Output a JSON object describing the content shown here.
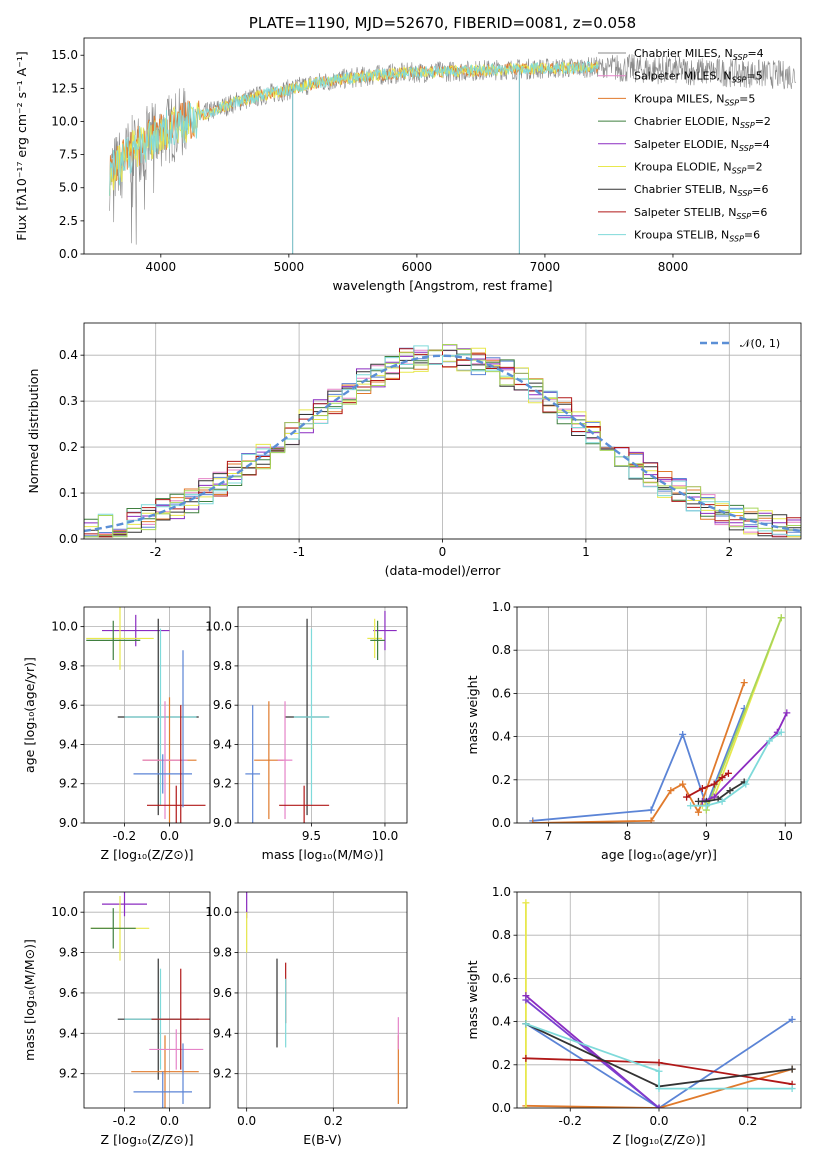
{
  "colors": {
    "Chabrier MILES": "#8a8a8a",
    "Salpeter MILES": "#e584c8",
    "Kroupa MILES": "#e07a2c",
    "Chabrier ELODIE": "#3f7f3f",
    "Salpeter ELODIE": "#8b2cc1",
    "Kroupa ELODIE": "#e8e84d",
    "Chabrier STELIB": "#333333",
    "Salpeter STELIB": "#b01818",
    "Kroupa STELIB": "#7fdada",
    "extra_blue": "#5b84d6",
    "extra_green": "#a8d65b"
  },
  "chart_data": [
    {
      "id": "spectrum",
      "type": "line",
      "title": "PLATE=1190, MJD=52670, FIBERID=0081, z=0.058",
      "xlabel": "wavelength [Angstrom, rest frame]",
      "ylabel": "Flux [fλ10⁻¹⁷ erg cm⁻² s⁻¹ A⁻¹]",
      "xlim": [
        3400,
        9000
      ],
      "ylim": [
        0,
        16.3
      ],
      "xticks": [
        4000,
        5000,
        6000,
        7000,
        8000
      ],
      "yticks": [
        0.0,
        2.5,
        5.0,
        7.5,
        10.0,
        12.5,
        15.0
      ],
      "legend": [
        {
          "name": "Chabrier MILES, N",
          "sub": "SSP",
          "val": "=4"
        },
        {
          "name": "Salpeter MILES, N",
          "sub": "SSP",
          "val": "=5"
        },
        {
          "name": "Kroupa MILES, N",
          "sub": "SSP",
          "val": "=5"
        },
        {
          "name": "Chabrier ELODIE, N",
          "sub": "SSP",
          "val": "=2"
        },
        {
          "name": "Salpeter ELODIE, N",
          "sub": "SSP",
          "val": "=4"
        },
        {
          "name": "Kroupa ELODIE, N",
          "sub": "SSP",
          "val": "=2"
        },
        {
          "name": "Chabrier STELIB, N",
          "sub": "SSP",
          "val": "=6"
        },
        {
          "name": "Salpeter STELIB, N",
          "sub": "SSP",
          "val": "=6"
        },
        {
          "name": "Kroupa STELIB, N",
          "sub": "SSP",
          "val": "=6"
        }
      ],
      "continuum": [
        [
          3600,
          6.0
        ],
        [
          3700,
          7.0
        ],
        [
          3800,
          8.0
        ],
        [
          3900,
          8.5
        ],
        [
          4000,
          9.2
        ],
        [
          4200,
          10.0
        ],
        [
          4400,
          10.8
        ],
        [
          4600,
          11.5
        ],
        [
          4800,
          12.0
        ],
        [
          5000,
          12.4
        ],
        [
          5200,
          12.9
        ],
        [
          5500,
          13.3
        ],
        [
          5800,
          13.6
        ],
        [
          6000,
          13.7
        ],
        [
          6300,
          13.8
        ],
        [
          6600,
          13.9
        ],
        [
          7000,
          14.0
        ],
        [
          7400,
          14.1
        ]
      ],
      "observed_range": [
        3600,
        8960
      ],
      "absorption_spikes": [
        5030,
        6800
      ]
    },
    {
      "id": "residuals",
      "type": "histogram",
      "xlabel": "(data-model)/error",
      "ylabel": "Normed distribution",
      "xlim": [
        -2.5,
        2.5
      ],
      "ylim": [
        0,
        0.47
      ],
      "xticks": [
        -2,
        -1,
        0,
        1,
        2
      ],
      "yticks": [
        0.0,
        0.1,
        0.2,
        0.3,
        0.4
      ],
      "legend": "𝒩(0, 1)",
      "reference": "N(0,1)"
    },
    {
      "id": "age_vs_Z",
      "type": "errorbar",
      "xlabel": "Z [log₁₀(Z/Z⊙)]",
      "ylabel": "age  [log₁₀(age/yr)]",
      "xlim": [
        -0.38,
        0.18
      ],
      "ylim": [
        9.0,
        10.1
      ],
      "xticks": [
        -0.2,
        0.0
      ],
      "yticks": [
        9.0,
        9.2,
        9.4,
        9.6,
        9.8,
        10.0
      ],
      "points": [
        {
          "x": -0.15,
          "y": 9.98,
          "xe": 0.15,
          "ye": 0.08,
          "c": "#8b2cc1"
        },
        {
          "x": -0.22,
          "y": 9.94,
          "xe": 0.15,
          "ye": 0.16,
          "c": "#e8e84d"
        },
        {
          "x": -0.25,
          "y": 9.93,
          "xe": 0.12,
          "ye": 0.1,
          "c": "#3f7f3f"
        },
        {
          "x": -0.05,
          "y": 9.54,
          "xe": 0.18,
          "ye": 0.5,
          "c": "#333333"
        },
        {
          "x": -0.04,
          "y": 9.54,
          "xe": 0.16,
          "ye": 0.45,
          "c": "#7fdada"
        },
        {
          "x": 0.0,
          "y": 9.32,
          "xe": 0.12,
          "ye": 0.32,
          "c": "#e07a2c"
        },
        {
          "x": -0.02,
          "y": 9.32,
          "xe": 0.1,
          "ye": 0.3,
          "c": "#e584c8"
        },
        {
          "x": 0.03,
          "y": 9.09,
          "xe": 0.13,
          "ye": 0.1,
          "c": "#b01818"
        },
        {
          "x": -0.03,
          "y": 9.25,
          "xe": 0.13,
          "ye": 0.1,
          "c": "#5b84d6"
        },
        {
          "x": 0.06,
          "y": 9.48,
          "xe": 0.0,
          "ye": 0.4,
          "c": "#5b84d6"
        },
        {
          "x": 0.05,
          "y": 9.1,
          "xe": 0.0,
          "ye": 0.5,
          "c": "#b01818"
        }
      ]
    },
    {
      "id": "age_vs_mass",
      "type": "errorbar",
      "xlabel": "mass [log₁₀(M/M⊙)]",
      "ylabel": "",
      "xlim": [
        9.0,
        10.15
      ],
      "ylim": [
        9.0,
        10.1
      ],
      "xticks": [
        9.5,
        10.0
      ],
      "yticks": [
        9.0,
        9.2,
        9.4,
        9.6,
        9.8,
        10.0
      ],
      "points": [
        {
          "x": 10.0,
          "y": 9.98,
          "xe": 0.08,
          "ye": 0.1,
          "c": "#8b2cc1"
        },
        {
          "x": 9.93,
          "y": 9.94,
          "xe": 0.05,
          "ye": 0.1,
          "c": "#e8e84d"
        },
        {
          "x": 9.95,
          "y": 9.93,
          "xe": 0.05,
          "ye": 0.1,
          "c": "#3f7f3f"
        },
        {
          "x": 9.47,
          "y": 9.54,
          "xe": 0.15,
          "ye": 0.5,
          "c": "#333333"
        },
        {
          "x": 9.5,
          "y": 9.54,
          "xe": 0.12,
          "ye": 0.45,
          "c": "#7fdada"
        },
        {
          "x": 9.21,
          "y": 9.32,
          "xe": 0.1,
          "ye": 0.3,
          "c": "#e07a2c"
        },
        {
          "x": 9.32,
          "y": 9.32,
          "xe": 0.05,
          "ye": 0.3,
          "c": "#e584c8"
        },
        {
          "x": 9.45,
          "y": 9.09,
          "xe": 0.17,
          "ye": 0.1,
          "c": "#b01818"
        },
        {
          "x": 9.1,
          "y": 9.25,
          "xe": 0.05,
          "ye": 0.35,
          "c": "#5b84d6"
        }
      ]
    },
    {
      "id": "massweight_vs_age",
      "type": "line",
      "xlabel": "age  [log₁₀(age/yr)]",
      "ylabel": "mass weight",
      "xlim": [
        6.6,
        10.2
      ],
      "ylim": [
        0,
        1.0
      ],
      "xticks": [
        7,
        8,
        9,
        10
      ],
      "yticks": [
        0.0,
        0.2,
        0.4,
        0.6,
        0.8,
        1.0
      ],
      "series": [
        {
          "c": "#5b84d6",
          "x": [
            6.8,
            8.3,
            8.7,
            9.0,
            9.48
          ],
          "y": [
            0.01,
            0.06,
            0.41,
            0.08,
            0.53
          ]
        },
        {
          "c": "#e07a2c",
          "x": [
            6.8,
            8.3,
            8.55,
            8.7,
            8.9,
            9.48
          ],
          "y": [
            0.0,
            0.01,
            0.15,
            0.18,
            0.05,
            0.65
          ]
        },
        {
          "c": "#e8e84d",
          "x": [
            8.95,
            9.1,
            9.95
          ],
          "y": [
            0.08,
            0.12,
            0.95
          ]
        },
        {
          "c": "#a8d65b",
          "x": [
            9.0,
            9.95
          ],
          "y": [
            0.06,
            0.95
          ]
        },
        {
          "c": "#8b2cc1",
          "x": [
            8.95,
            9.1,
            9.9,
            10.02
          ],
          "y": [
            0.1,
            0.12,
            0.42,
            0.51
          ]
        },
        {
          "c": "#b01818",
          "x": [
            8.75,
            8.95,
            9.1,
            9.2,
            9.28
          ],
          "y": [
            0.12,
            0.16,
            0.18,
            0.21,
            0.23
          ]
        },
        {
          "c": "#333333",
          "x": [
            8.9,
            9.0,
            9.15,
            9.3,
            9.48
          ],
          "y": [
            0.1,
            0.1,
            0.11,
            0.15,
            0.19
          ]
        },
        {
          "c": "#7fdada",
          "x": [
            8.8,
            9.0,
            9.2,
            9.5,
            9.8,
            9.95
          ],
          "y": [
            0.08,
            0.08,
            0.1,
            0.18,
            0.38,
            0.42
          ]
        }
      ]
    },
    {
      "id": "mass_vs_Z",
      "type": "errorbar",
      "xlabel": "Z [log₁₀(Z/Z⊙)]",
      "ylabel": "mass [log₁₀(M/M⊙)]",
      "xlim": [
        -0.38,
        0.18
      ],
      "ylim": [
        9.03,
        10.1
      ],
      "xticks": [
        -0.2,
        0.0
      ],
      "yticks": [
        9.2,
        9.4,
        9.6,
        9.8,
        10.0
      ],
      "points": [
        {
          "x": -0.2,
          "y": 10.04,
          "xe": 0.1,
          "ye": 0.06,
          "c": "#8b2cc1"
        },
        {
          "x": -0.22,
          "y": 9.92,
          "xe": 0.13,
          "ye": 0.16,
          "c": "#e8e84d"
        },
        {
          "x": -0.25,
          "y": 9.92,
          "xe": 0.1,
          "ye": 0.1,
          "c": "#3f7f3f"
        },
        {
          "x": -0.05,
          "y": 9.47,
          "xe": 0.18,
          "ye": 0.3,
          "c": "#333333"
        },
        {
          "x": -0.04,
          "y": 9.47,
          "xe": 0.16,
          "ye": 0.25,
          "c": "#7fdada"
        },
        {
          "x": -0.02,
          "y": 9.21,
          "xe": 0.15,
          "ye": 0.18,
          "c": "#e07a2c"
        },
        {
          "x": 0.03,
          "y": 9.32,
          "xe": 0.12,
          "ye": 0.1,
          "c": "#e584c8"
        },
        {
          "x": 0.05,
          "y": 9.47,
          "xe": 0.13,
          "ye": 0.25,
          "c": "#b01818"
        },
        {
          "x": -0.03,
          "y": 9.11,
          "xe": 0.13,
          "ye": 0.1,
          "c": "#5b84d6"
        },
        {
          "x": 0.06,
          "y": 9.2,
          "xe": 0.0,
          "ye": 0.15,
          "c": "#5b84d6"
        }
      ]
    },
    {
      "id": "mass_vs_EBV",
      "type": "errorbar",
      "xlabel": "E(B-V)",
      "ylabel": "",
      "xlim": [
        -0.02,
        0.37
      ],
      "ylim": [
        9.03,
        10.1
      ],
      "xticks": [
        0.0,
        0.2
      ],
      "yticks": [
        9.2,
        9.4,
        9.6,
        9.8,
        10.0
      ],
      "points": [
        {
          "x": 0.0,
          "y": 10.04,
          "xe": 0.0,
          "ye": 0.07,
          "c": "#8b2cc1"
        },
        {
          "x": 0.0,
          "y": 9.9,
          "xe": 0.0,
          "ye": 0.1,
          "c": "#e8e84d"
        },
        {
          "x": 0.07,
          "y": 9.55,
          "xe": 0.0,
          "ye": 0.22,
          "c": "#333333"
        },
        {
          "x": 0.09,
          "y": 9.6,
          "xe": 0.0,
          "ye": 0.15,
          "c": "#b01818"
        },
        {
          "x": 0.09,
          "y": 9.5,
          "xe": 0.0,
          "ye": 0.17,
          "c": "#7fdada"
        },
        {
          "x": 0.35,
          "y": 9.22,
          "xe": 0.0,
          "ye": 0.17,
          "c": "#e07a2c"
        },
        {
          "x": 0.35,
          "y": 9.4,
          "xe": 0.0,
          "ye": 0.08,
          "c": "#e584c8"
        }
      ]
    },
    {
      "id": "massweight_vs_Z",
      "type": "line",
      "xlabel": "Z [log₁₀(Z/Z⊙)]",
      "ylabel": "mass weight",
      "xlim": [
        -0.32,
        0.32
      ],
      "ylim": [
        0,
        1.0
      ],
      "xticks": [
        -0.2,
        0.0,
        0.2
      ],
      "yticks": [
        0.0,
        0.2,
        0.4,
        0.6,
        0.8,
        1.0
      ],
      "series": [
        {
          "c": "#5b84d6",
          "x": [
            -0.3,
            0.0,
            0.3
          ],
          "y": [
            0.39,
            0.0,
            0.41
          ]
        },
        {
          "c": "#e07a2c",
          "x": [
            -0.3,
            0.0,
            0.3
          ],
          "y": [
            0.01,
            0.0,
            0.18
          ]
        },
        {
          "c": "#e8e84d",
          "x": [
            -0.3,
            -0.3
          ],
          "y": [
            0.0,
            0.95
          ]
        },
        {
          "c": "#8b2cc1",
          "x": [
            -0.3,
            0.0
          ],
          "y": [
            0.52,
            0.0
          ]
        },
        {
          "c": "#7b3fd0",
          "x": [
            -0.3,
            0.0
          ],
          "y": [
            0.5,
            0.0
          ]
        },
        {
          "c": "#b01818",
          "x": [
            -0.3,
            0.0,
            0.3
          ],
          "y": [
            0.23,
            0.21,
            0.11
          ]
        },
        {
          "c": "#333333",
          "x": [
            -0.3,
            0.0,
            0.3
          ],
          "y": [
            0.39,
            0.1,
            0.18
          ]
        },
        {
          "c": "#7fdada",
          "x": [
            -0.3,
            0.0,
            0.0,
            0.3
          ],
          "y": [
            0.39,
            0.17,
            0.09,
            0.09
          ]
        }
      ]
    }
  ]
}
